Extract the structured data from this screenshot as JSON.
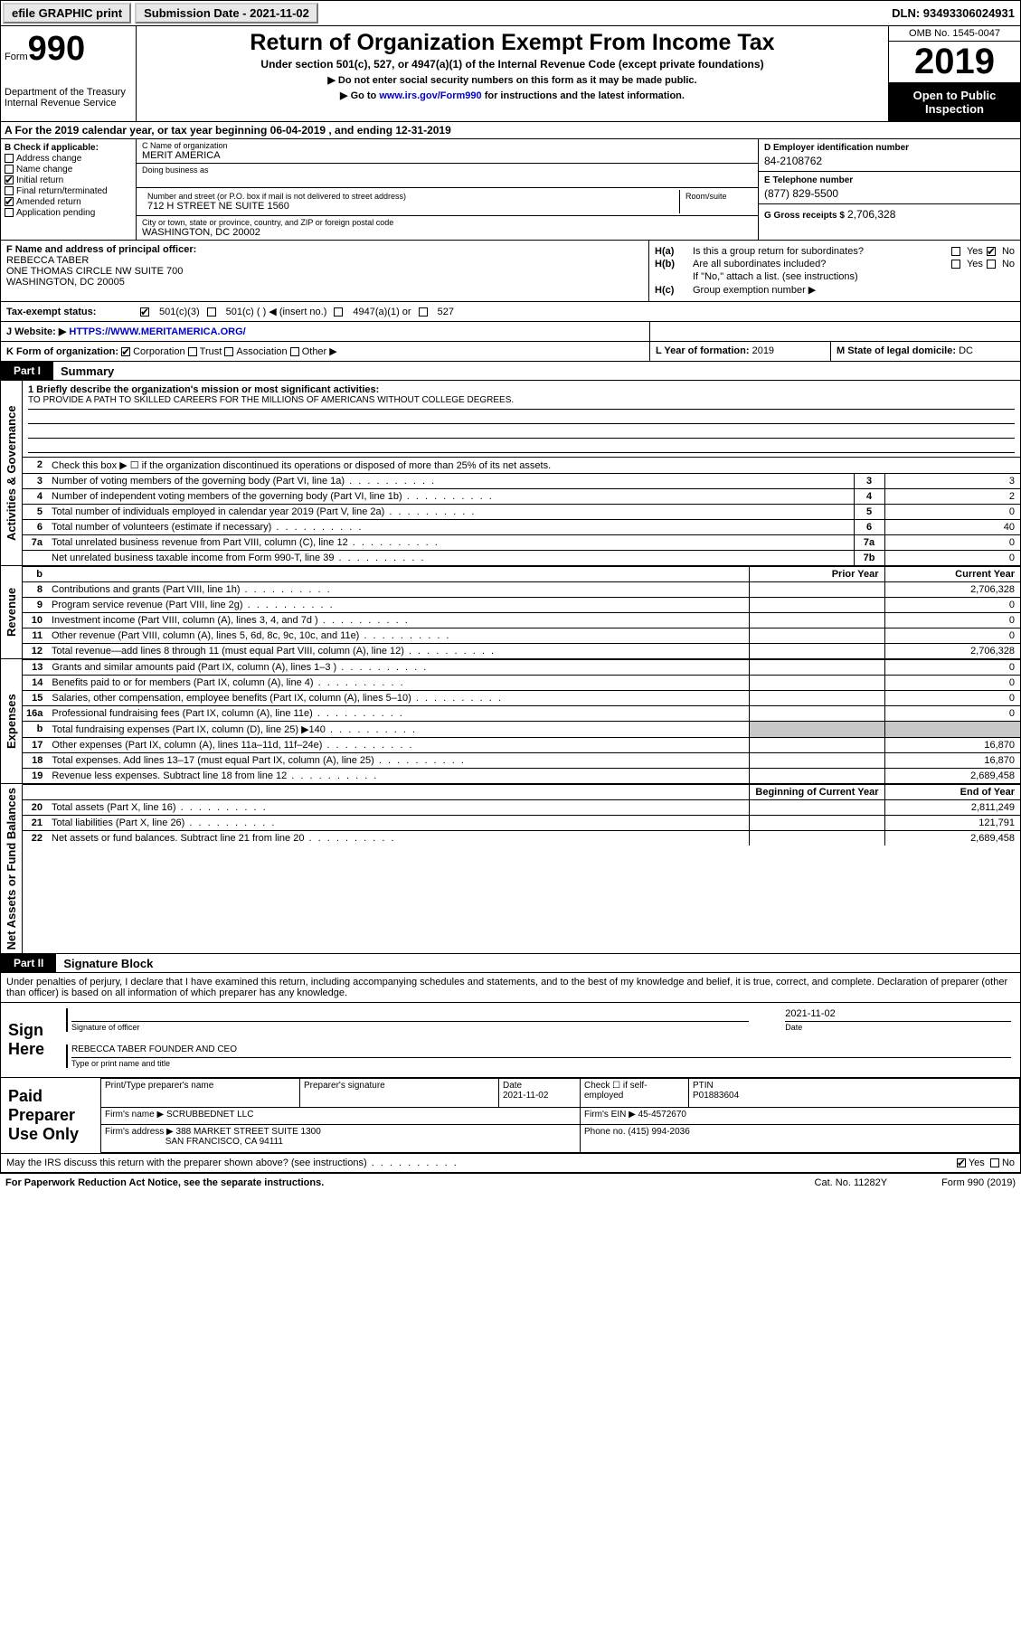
{
  "topbar": {
    "efile": "efile GRAPHIC print",
    "submission_label": "Submission Date - 2021-11-02",
    "dln": "DLN: 93493306024931"
  },
  "header": {
    "form_word": "Form",
    "form_num": "990",
    "dept": "Department of the Treasury",
    "irs": "Internal Revenue Service",
    "title": "Return of Organization Exempt From Income Tax",
    "subtitle": "Under section 501(c), 527, or 4947(a)(1) of the Internal Revenue Code (except private foundations)",
    "instr1": "▶ Do not enter social security numbers on this form as it may be made public.",
    "instr2_pre": "▶ Go to ",
    "instr2_link": "www.irs.gov/Form990",
    "instr2_post": " for instructions and the latest information.",
    "omb": "OMB No. 1545-0047",
    "year": "2019",
    "inspect1": "Open to Public",
    "inspect2": "Inspection"
  },
  "rowA": "A For the 2019 calendar year, or tax year beginning 06-04-2019    , and ending 12-31-2019",
  "B": {
    "label": "B Check if applicable:",
    "address_change": "Address change",
    "name_change": "Name change",
    "initial_return": "Initial return",
    "final_return": "Final return/terminated",
    "amended_return": "Amended return",
    "app_pending": "Application pending"
  },
  "C": {
    "name_lbl": "C Name of organization",
    "name": "MERIT AMERICA",
    "dba_lbl": "Doing business as",
    "addr_lbl": "Number and street (or P.O. box if mail is not delivered to street address)",
    "addr": "712 H STREET NE SUITE 1560",
    "room_lbl": "Room/suite",
    "city_lbl": "City or town, state or province, country, and ZIP or foreign postal code",
    "city": "WASHINGTON, DC  20002"
  },
  "D": {
    "lbl": "D Employer identification number",
    "val": "84-2108762"
  },
  "E": {
    "lbl": "E Telephone number",
    "val": "(877) 829-5500"
  },
  "G": {
    "lbl": "G Gross receipts $",
    "val": "2,706,328"
  },
  "F": {
    "lbl": "F  Name and address of principal officer:",
    "name": "REBECCA TABER",
    "addr1": "ONE THOMAS CIRCLE NW SUITE 700",
    "addr2": "WASHINGTON, DC  20005"
  },
  "H": {
    "a": "Is this a group return for subordinates?",
    "b": "Are all subordinates included?",
    "b2": "If \"No,\" attach a list. (see instructions)",
    "c": "Group exemption number ▶",
    "yes": "Yes",
    "no": "No"
  },
  "I": {
    "lbl": "Tax-exempt status:",
    "opts": [
      "501(c)(3)",
      "501(c) (  ) ◀ (insert no.)",
      "4947(a)(1) or",
      "527"
    ]
  },
  "J": {
    "lbl": "J    Website: ▶",
    "url": "HTTPS://WWW.MERITAMERICA.ORG/"
  },
  "K": {
    "lbl": "K Form of organization:",
    "corp": "Corporation",
    "trust": "Trust",
    "assoc": "Association",
    "other": "Other ▶"
  },
  "L": {
    "lbl": "L Year of formation:",
    "val": "2019"
  },
  "M": {
    "lbl": "M State of legal domicile:",
    "val": "DC"
  },
  "part1": {
    "tab": "Part I",
    "title": "Summary"
  },
  "mission": {
    "q": "1  Briefly describe the organization's mission or most significant activities:",
    "text": "TO PROVIDE A PATH TO SKILLED CAREERS FOR THE MILLIONS OF AMERICANS WITHOUT COLLEGE DEGREES."
  },
  "gov": {
    "l2": "Check this box ▶ ☐  if the organization discontinued its operations or disposed of more than 25% of its net assets.",
    "rows": [
      {
        "n": "3",
        "t": "Number of voting members of the governing body (Part VI, line 1a)",
        "c": "3",
        "v": "3"
      },
      {
        "n": "4",
        "t": "Number of independent voting members of the governing body (Part VI, line 1b)",
        "c": "4",
        "v": "2"
      },
      {
        "n": "5",
        "t": "Total number of individuals employed in calendar year 2019 (Part V, line 2a)",
        "c": "5",
        "v": "0"
      },
      {
        "n": "6",
        "t": "Total number of volunteers (estimate if necessary)",
        "c": "6",
        "v": "40"
      },
      {
        "n": "7a",
        "t": "Total unrelated business revenue from Part VIII, column (C), line 12",
        "c": "7a",
        "v": "0"
      },
      {
        "n": "",
        "t": "Net unrelated business taxable income from Form 990-T, line 39",
        "c": "7b",
        "v": "0"
      }
    ]
  },
  "yearhdr": {
    "b": "b",
    "prior": "Prior Year",
    "current": "Current Year"
  },
  "revenue": [
    {
      "n": "8",
      "t": "Contributions and grants (Part VIII, line 1h)",
      "p": "",
      "c": "2,706,328"
    },
    {
      "n": "9",
      "t": "Program service revenue (Part VIII, line 2g)",
      "p": "",
      "c": "0"
    },
    {
      "n": "10",
      "t": "Investment income (Part VIII, column (A), lines 3, 4, and 7d )",
      "p": "",
      "c": "0"
    },
    {
      "n": "11",
      "t": "Other revenue (Part VIII, column (A), lines 5, 6d, 8c, 9c, 10c, and 11e)",
      "p": "",
      "c": "0"
    },
    {
      "n": "12",
      "t": "Total revenue—add lines 8 through 11 (must equal Part VIII, column (A), line 12)",
      "p": "",
      "c": "2,706,328"
    }
  ],
  "expenses": [
    {
      "n": "13",
      "t": "Grants and similar amounts paid (Part IX, column (A), lines 1–3 )",
      "p": "",
      "c": "0"
    },
    {
      "n": "14",
      "t": "Benefits paid to or for members (Part IX, column (A), line 4)",
      "p": "",
      "c": "0"
    },
    {
      "n": "15",
      "t": "Salaries, other compensation, employee benefits (Part IX, column (A), lines 5–10)",
      "p": "",
      "c": "0"
    },
    {
      "n": "16a",
      "t": "Professional fundraising fees (Part IX, column (A), line 11e)",
      "p": "",
      "c": "0"
    },
    {
      "n": "b",
      "t": "Total fundraising expenses (Part IX, column (D), line 25) ▶140",
      "p": "grey",
      "c": "grey"
    },
    {
      "n": "17",
      "t": "Other expenses (Part IX, column (A), lines 11a–11d, 11f–24e)",
      "p": "",
      "c": "16,870"
    },
    {
      "n": "18",
      "t": "Total expenses. Add lines 13–17 (must equal Part IX, column (A), line 25)",
      "p": "",
      "c": "16,870"
    },
    {
      "n": "19",
      "t": "Revenue less expenses. Subtract line 18 from line 12",
      "p": "",
      "c": "2,689,458"
    }
  ],
  "nethdr": {
    "prior": "Beginning of Current Year",
    "current": "End of Year"
  },
  "netassets": [
    {
      "n": "20",
      "t": "Total assets (Part X, line 16)",
      "p": "",
      "c": "2,811,249"
    },
    {
      "n": "21",
      "t": "Total liabilities (Part X, line 26)",
      "p": "",
      "c": "121,791"
    },
    {
      "n": "22",
      "t": "Net assets or fund balances. Subtract line 21 from line 20",
      "p": "",
      "c": "2,689,458"
    }
  ],
  "vlabels": {
    "gov": "Activities & Governance",
    "rev": "Revenue",
    "exp": "Expenses",
    "net": "Net Assets or Fund Balances"
  },
  "part2": {
    "tab": "Part II",
    "title": "Signature Block"
  },
  "perjury": "Under penalties of perjury, I declare that I have examined this return, including accompanying schedules and statements, and to the best of my knowledge and belief, it is true, correct, and complete. Declaration of preparer (other than officer) is based on all information of which preparer has any knowledge.",
  "sign": {
    "label": "Sign Here",
    "sig_officer": "Signature of officer",
    "date_val": "2021-11-02",
    "date_lbl": "Date",
    "name": "REBECCA TABER  FOUNDER AND CEO",
    "type_lbl": "Type or print name and title"
  },
  "preparer": {
    "label": "Paid Preparer Use Only",
    "print_name_lbl": "Print/Type preparer's name",
    "sig_lbl": "Preparer's signature",
    "date_lbl": "Date",
    "date_val": "2021-11-02",
    "check_lbl": "Check ☐ if self-employed",
    "ptin_lbl": "PTIN",
    "ptin": "P01883604",
    "firm_name_lbl": "Firm's name    ▶",
    "firm_name": "SCRUBBEDNET LLC",
    "firm_ein_lbl": "Firm's EIN ▶",
    "firm_ein": "45-4572670",
    "firm_addr_lbl": "Firm's address ▶",
    "firm_addr1": "388 MARKET STREET SUITE 1300",
    "firm_addr2": "SAN FRANCISCO, CA  94111",
    "phone_lbl": "Phone no.",
    "phone": "(415) 994-2036"
  },
  "discuss": {
    "q": "May the IRS discuss this return with the preparer shown above? (see instructions)",
    "yes": "Yes",
    "no": "No"
  },
  "footer": {
    "left": "For Paperwork Reduction Act Notice, see the separate instructions.",
    "mid": "Cat. No. 11282Y",
    "right": "Form 990 (2019)"
  }
}
